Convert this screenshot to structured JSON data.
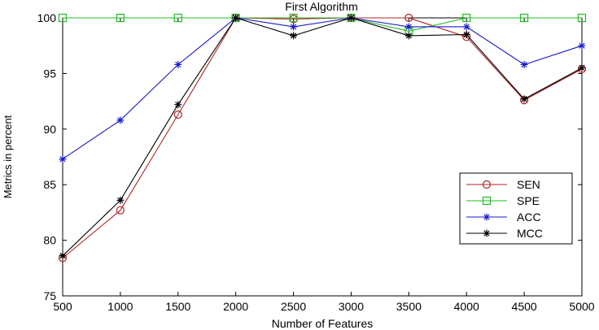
{
  "chart_data": {
    "type": "line",
    "title": "First Algorithm",
    "xlabel": "Number of Features",
    "ylabel": "Metrics in percent",
    "x": [
      500,
      1000,
      1500,
      2000,
      2500,
      3000,
      3500,
      4000,
      4500,
      5000
    ],
    "xticks": [
      "500",
      "1000",
      "1500",
      "2000",
      "2500",
      "3000",
      "3500",
      "4000",
      "4500",
      "5000"
    ],
    "yticks": [
      "75",
      "80",
      "85",
      "90",
      "95",
      "100"
    ],
    "xlim": [
      500,
      5000
    ],
    "ylim": [
      75,
      100
    ],
    "grid": false,
    "legend_position": "right",
    "series": [
      {
        "name": "SEN",
        "color": "#b22222",
        "marker": "circle",
        "values": [
          78.4,
          82.7,
          91.3,
          100,
          99.9,
          100,
          100,
          98.3,
          92.6,
          95.4
        ]
      },
      {
        "name": "SPE",
        "color": "#22bb22",
        "marker": "square",
        "values": [
          100,
          100,
          100,
          100,
          100,
          100,
          98.8,
          100,
          100,
          100
        ]
      },
      {
        "name": "ACC",
        "color": "#1a1acc",
        "marker": "star",
        "values": [
          87.3,
          90.8,
          95.8,
          100,
          99.2,
          100,
          99.2,
          99.2,
          95.8,
          97.5
        ]
      },
      {
        "name": "MCC",
        "color": "#000000",
        "marker": "star",
        "values": [
          78.6,
          83.6,
          92.2,
          100,
          98.4,
          100,
          98.4,
          98.5,
          92.7,
          95.5
        ]
      }
    ]
  }
}
